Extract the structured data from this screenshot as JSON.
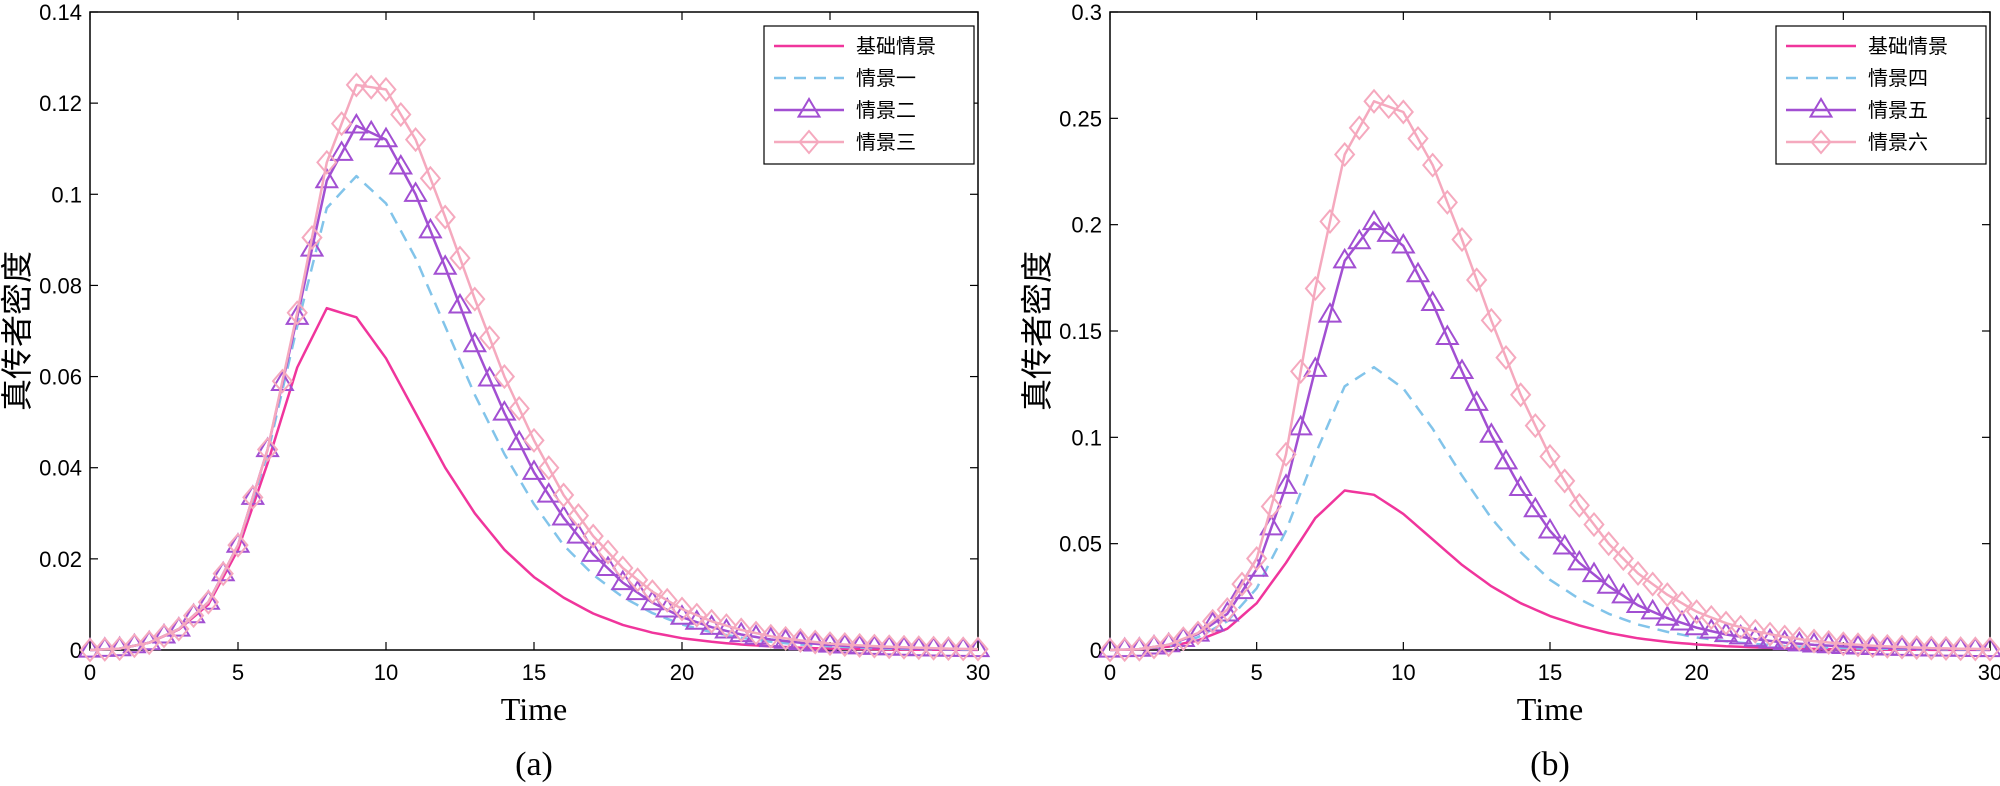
{
  "chart_data": [
    {
      "type": "line",
      "panel_label": "(a)",
      "xlabel": "Time",
      "ylabel": "真传者密度",
      "xlim": [
        0,
        30
      ],
      "ylim": [
        0,
        0.14
      ],
      "xticks": [
        "0",
        "5",
        "10",
        "15",
        "20",
        "25",
        "30"
      ],
      "yticks": [
        "0",
        "0.02",
        "0.04",
        "0.06",
        "0.08",
        "0.1",
        "0.12",
        "0.14"
      ],
      "legend_position": "top-right",
      "x": [
        0,
        1,
        2,
        3,
        4,
        5,
        6,
        7,
        8,
        9,
        10,
        11,
        12,
        13,
        14,
        15,
        16,
        17,
        18,
        19,
        20,
        21,
        22,
        23,
        24,
        25,
        26,
        27,
        28,
        29,
        30
      ],
      "series": [
        {
          "name": "基础情景",
          "color": "#f0359c",
          "style": "solid",
          "marker": "none",
          "values": [
            0,
            0.0003,
            0.0016,
            0.0045,
            0.01,
            0.022,
            0.041,
            0.062,
            0.075,
            0.073,
            0.064,
            0.052,
            0.04,
            0.03,
            0.022,
            0.016,
            0.0115,
            0.008,
            0.0055,
            0.0038,
            0.0026,
            0.0018,
            0.0012,
            0.0008,
            0.0005,
            0.0003,
            0.0002,
            0.0001,
            7e-05,
            4e-05,
            2e-05
          ]
        },
        {
          "name": "情景一",
          "color": "#82c4ea",
          "style": "dashed",
          "marker": "none",
          "values": [
            0,
            0.0003,
            0.0016,
            0.0046,
            0.0105,
            0.023,
            0.043,
            0.071,
            0.097,
            0.104,
            0.098,
            0.086,
            0.071,
            0.056,
            0.043,
            0.032,
            0.023,
            0.0165,
            0.0116,
            0.0081,
            0.0056,
            0.0039,
            0.0027,
            0.0018,
            0.0012,
            0.0008,
            0.0005,
            0.0003,
            0.0002,
            0.0001,
            5e-05
          ]
        },
        {
          "name": "情景二",
          "color": "#a24fd2",
          "style": "solid",
          "marker": "triangle",
          "values": [
            0,
            0.0003,
            0.0016,
            0.0046,
            0.0105,
            0.023,
            0.044,
            0.073,
            0.103,
            0.115,
            0.112,
            0.1,
            0.084,
            0.067,
            0.052,
            0.039,
            0.029,
            0.021,
            0.0148,
            0.0104,
            0.0072,
            0.005,
            0.0034,
            0.0023,
            0.0016,
            0.0011,
            0.0007,
            0.0005,
            0.0003,
            0.0002,
            0.0001
          ]
        },
        {
          "name": "情景三",
          "color": "#f5a9be",
          "style": "solid",
          "marker": "diamond",
          "values": [
            0,
            0.0003,
            0.0016,
            0.0046,
            0.0105,
            0.023,
            0.044,
            0.074,
            0.107,
            0.124,
            0.123,
            0.112,
            0.095,
            0.077,
            0.06,
            0.046,
            0.034,
            0.025,
            0.018,
            0.0128,
            0.009,
            0.0063,
            0.0044,
            0.003,
            0.0021,
            0.0014,
            0.001,
            0.0007,
            0.0005,
            0.0003,
            0.0002
          ]
        }
      ]
    },
    {
      "type": "line",
      "panel_label": "(b)",
      "xlabel": "Time",
      "ylabel": "真传者密度",
      "xlim": [
        0,
        30
      ],
      "ylim": [
        0,
        0.3
      ],
      "xticks": [
        "0",
        "5",
        "10",
        "15",
        "20",
        "25",
        "30"
      ],
      "yticks": [
        "0",
        "0.05",
        "0.1",
        "0.15",
        "0.2",
        "0.25",
        "0.3"
      ],
      "legend_position": "top-right",
      "x": [
        0,
        1,
        2,
        3,
        4,
        5,
        6,
        7,
        8,
        9,
        10,
        11,
        12,
        13,
        14,
        15,
        16,
        17,
        18,
        19,
        20,
        21,
        22,
        23,
        24,
        25,
        26,
        27,
        28,
        29,
        30
      ],
      "series": [
        {
          "name": "基础情景",
          "color": "#f0359c",
          "style": "solid",
          "marker": "none",
          "values": [
            0,
            0.0003,
            0.0016,
            0.0045,
            0.01,
            0.022,
            0.041,
            0.062,
            0.075,
            0.073,
            0.064,
            0.052,
            0.04,
            0.03,
            0.022,
            0.016,
            0.0115,
            0.008,
            0.0055,
            0.0038,
            0.0026,
            0.0018,
            0.0012,
            0.0008,
            0.0005,
            0.0003,
            0.0002,
            0.0001,
            7e-05,
            4e-05,
            2e-05
          ]
        },
        {
          "name": "情景四",
          "color": "#82c4ea",
          "style": "dashed",
          "marker": "none",
          "values": [
            0,
            0.0004,
            0.002,
            0.006,
            0.0135,
            0.029,
            0.056,
            0.092,
            0.124,
            0.133,
            0.123,
            0.104,
            0.082,
            0.062,
            0.046,
            0.033,
            0.024,
            0.017,
            0.012,
            0.0085,
            0.0059,
            0.0041,
            0.0028,
            0.0019,
            0.0013,
            0.0009,
            0.0006,
            0.0004,
            0.0003,
            0.0002,
            0.0001
          ]
        },
        {
          "name": "情景五",
          "color": "#a24fd2",
          "style": "solid",
          "marker": "triangle",
          "values": [
            0,
            0.0004,
            0.0025,
            0.0075,
            0.017,
            0.038,
            0.077,
            0.132,
            0.183,
            0.201,
            0.19,
            0.163,
            0.131,
            0.101,
            0.076,
            0.056,
            0.041,
            0.03,
            0.021,
            0.015,
            0.0105,
            0.0073,
            0.0051,
            0.0035,
            0.0024,
            0.0017,
            0.0012,
            0.0008,
            0.0005,
            0.0004,
            0.0002
          ]
        },
        {
          "name": "情景六",
          "color": "#f5a9be",
          "style": "solid",
          "marker": "diamond",
          "values": [
            0,
            0.0004,
            0.0025,
            0.008,
            0.019,
            0.043,
            0.092,
            0.17,
            0.233,
            0.258,
            0.253,
            0.228,
            0.193,
            0.155,
            0.12,
            0.091,
            0.068,
            0.05,
            0.036,
            0.026,
            0.018,
            0.0126,
            0.0088,
            0.0061,
            0.0042,
            0.0029,
            0.002,
            0.0014,
            0.0009,
            0.0006,
            0.0004
          ]
        }
      ]
    }
  ]
}
